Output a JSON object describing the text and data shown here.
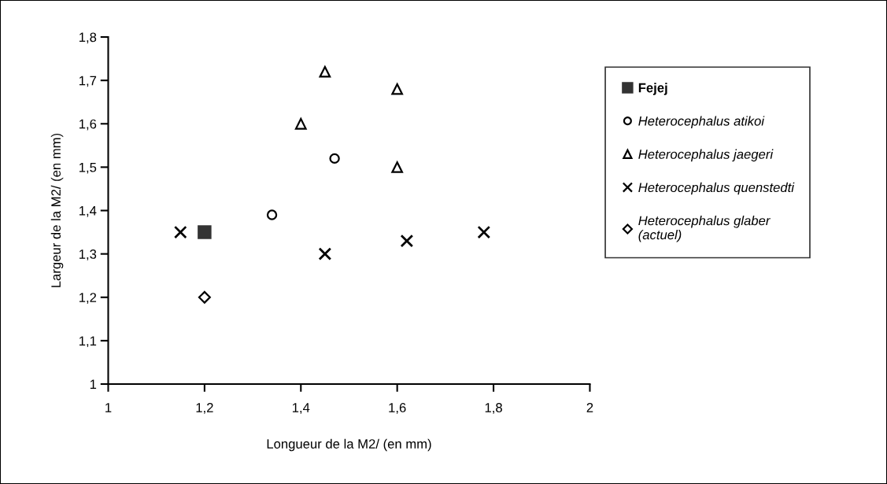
{
  "chart_data": {
    "type": "scatter",
    "xlabel": "Longueur de la M2/ (en mm)",
    "ylabel": "Largeur de la M2/ (en mm)",
    "xlim": [
      1,
      2
    ],
    "ylim": [
      1,
      1.8
    ],
    "xticks": [
      1,
      {
        "value": 1.2,
        "label": "1,2"
      },
      {
        "value": 1.4,
        "label": "1,4"
      },
      {
        "value": 1.6,
        "label": "1,6"
      },
      {
        "value": 1.8,
        "label": "1,8"
      },
      2
    ],
    "yticks": [
      1,
      {
        "value": 1.1,
        "label": "1,1"
      },
      {
        "value": 1.2,
        "label": "1,2"
      },
      {
        "value": 1.3,
        "label": "1,3"
      },
      {
        "value": 1.4,
        "label": "1,4"
      },
      {
        "value": 1.5,
        "label": "1,5"
      },
      {
        "value": 1.6,
        "label": "1,6"
      },
      {
        "value": 1.7,
        "label": "1,7"
      },
      {
        "value": 1.8,
        "label": "1,8"
      }
    ],
    "grid": false,
    "legend": "right",
    "series": [
      {
        "name": "Fejej",
        "color": "#333333",
        "marker": "square",
        "x": [
          1.2
        ],
        "values": [
          1.35
        ]
      },
      {
        "name": "Heterocephalus atikoi",
        "color": "#000000",
        "marker": "circle",
        "x": [
          1.34,
          1.47
        ],
        "values": [
          1.39,
          1.52
        ]
      },
      {
        "name": "Heterocephalus jaegeri",
        "color": "#000000",
        "marker": "triangle",
        "x": [
          1.45,
          1.6,
          1.4,
          1.6
        ],
        "values": [
          1.72,
          1.68,
          1.6,
          1.5
        ]
      },
      {
        "name": "Heterocephalus quenstedti",
        "color": "#000000",
        "marker": "cross",
        "x": [
          1.15,
          1.45,
          1.62,
          1.78
        ],
        "values": [
          1.35,
          1.3,
          1.33,
          1.35
        ]
      },
      {
        "name": "Heterocephalus glaber\n(actuel)",
        "color": "#000000",
        "marker": "diamond",
        "x": [
          1.2
        ],
        "values": [
          1.2
        ]
      }
    ]
  }
}
